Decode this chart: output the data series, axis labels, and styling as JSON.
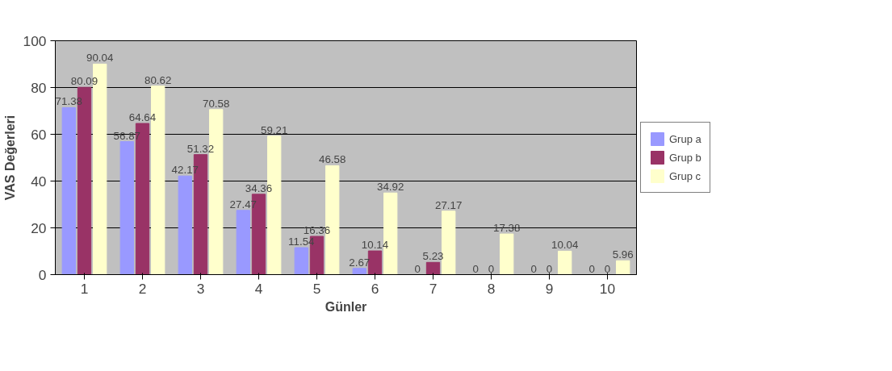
{
  "chart_data": {
    "type": "bar",
    "xlabel": "Günler",
    "ylabel": "VAS Değerleri",
    "categories": [
      "1",
      "2",
      "3",
      "4",
      "5",
      "6",
      "7",
      "8",
      "9",
      "10"
    ],
    "series": [
      {
        "name": "Grup a",
        "color": "#9999ff",
        "values": [
          71.38,
          56.87,
          42.17,
          27.47,
          11.54,
          2.67,
          0,
          0,
          0,
          0
        ]
      },
      {
        "name": "Grup b",
        "color": "#993366",
        "values": [
          80.09,
          64.64,
          51.32,
          34.36,
          16.36,
          10.14,
          5.23,
          0,
          0,
          0
        ]
      },
      {
        "name": "Grup c",
        "color": "#ffffcc",
        "values": [
          90.04,
          80.62,
          70.58,
          59.21,
          46.58,
          34.92,
          27.17,
          17.38,
          10.04,
          5.96
        ]
      }
    ],
    "ylim": [
      0,
      100
    ],
    "yticks": [
      0,
      20,
      40,
      60,
      80,
      100
    ],
    "grid": "y",
    "legend": "right",
    "data_labels": true
  }
}
